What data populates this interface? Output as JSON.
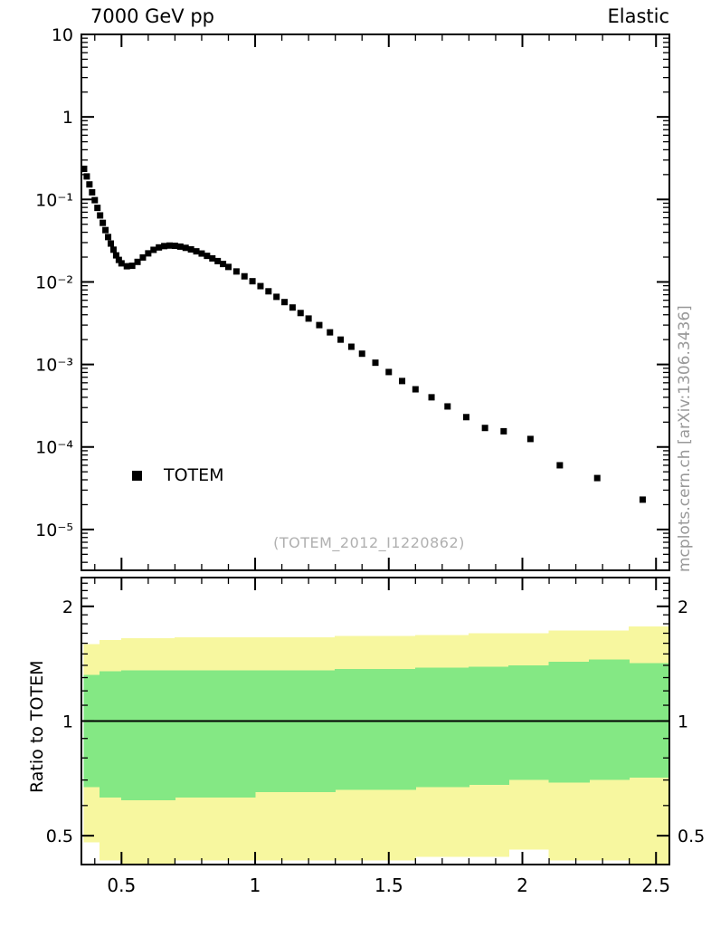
{
  "header": {
    "title_left": "7000 GeV pp",
    "title_right": "Elastic"
  },
  "legend": {
    "label": "TOTEM"
  },
  "watermark": "(TOTEM_2012_I1220862)",
  "side_note": "mcplots.cern.ch [arXiv:1306.3436]",
  "ratio_ylabel": "Ratio to TOTEM",
  "colors": {
    "marker": "#000000",
    "band_outer": "#f7f79f",
    "band_inner": "#84e884",
    "axis": "#000000",
    "watermark_text": "#b0b0b0",
    "side_note_text": "#999999"
  },
  "chart_data": [
    {
      "type": "scatter",
      "series_name": "TOTEM",
      "title": "7000 GeV pp — Elastic",
      "xlabel": "",
      "ylabel": "",
      "xlog": false,
      "ylog": true,
      "xlim": [
        0.35,
        2.55
      ],
      "ylim": [
        3.2e-06,
        10
      ],
      "marker": "filled-square",
      "marker_color": "#000000",
      "legend_position": "left-middle",
      "grid": false,
      "y_ticks": [
        {
          "label": "10",
          "value": 10
        },
        {
          "label": "1",
          "value": 1
        },
        {
          "label": "10⁻¹",
          "value": 0.1
        },
        {
          "label": "10⁻²",
          "value": 0.01
        },
        {
          "label": "10⁻³",
          "value": 0.001
        },
        {
          "label": "10⁻⁴",
          "value": 0.0001
        },
        {
          "label": "10⁻⁵",
          "value": 1e-05
        }
      ],
      "x_tick_labels": [
        {
          "label": "0.5",
          "value": 0.5
        },
        {
          "label": "1",
          "value": 1
        },
        {
          "label": "1.5",
          "value": 1.5
        },
        {
          "label": "2",
          "value": 2
        },
        {
          "label": "2.5",
          "value": 2.5
        }
      ],
      "x": [
        0.36,
        0.37,
        0.38,
        0.39,
        0.4,
        0.41,
        0.42,
        0.43,
        0.44,
        0.45,
        0.46,
        0.47,
        0.48,
        0.49,
        0.5,
        0.52,
        0.54,
        0.56,
        0.58,
        0.6,
        0.62,
        0.64,
        0.66,
        0.68,
        0.7,
        0.72,
        0.74,
        0.76,
        0.78,
        0.8,
        0.82,
        0.84,
        0.86,
        0.88,
        0.9,
        0.93,
        0.96,
        0.99,
        1.02,
        1.05,
        1.08,
        1.11,
        1.14,
        1.17,
        1.2,
        1.24,
        1.28,
        1.32,
        1.36,
        1.4,
        1.45,
        1.5,
        1.55,
        1.6,
        1.66,
        1.72,
        1.79,
        1.86,
        1.93,
        2.03,
        2.14,
        2.28,
        2.45
      ],
      "y": [
        0.235,
        0.19,
        0.152,
        0.122,
        0.098,
        0.079,
        0.064,
        0.052,
        0.0425,
        0.035,
        0.0292,
        0.0246,
        0.021,
        0.0185,
        0.0168,
        0.0155,
        0.0157,
        0.0175,
        0.0198,
        0.0222,
        0.0245,
        0.0262,
        0.0272,
        0.0276,
        0.0274,
        0.0268,
        0.0259,
        0.0248,
        0.0235,
        0.0221,
        0.0207,
        0.0193,
        0.0179,
        0.0165,
        0.0152,
        0.0134,
        0.0117,
        0.0102,
        0.0089,
        0.0077,
        0.0066,
        0.0057,
        0.0049,
        0.0042,
        0.0036,
        0.003,
        0.00245,
        0.002,
        0.00164,
        0.00135,
        0.00105,
        0.00081,
        0.00063,
        0.0005,
        0.0004,
        0.00031,
        0.00023,
        0.00017,
        0.000155,
        0.000125,
        6e-05,
        4.2e-05,
        2.3e-05
      ]
    },
    {
      "type": "band-ratio",
      "title": "Ratio to TOTEM",
      "ylog": true,
      "ylim": [
        0.42,
        2.38
      ],
      "reference_line": 1,
      "y_ticks": [
        {
          "label": "2",
          "value": 2
        },
        {
          "label": "1",
          "value": 1
        },
        {
          "label": "0.5",
          "value": 0.5
        }
      ],
      "bands": [
        {
          "name": "outer-uncertainty",
          "color": "#f7f79f",
          "bins": [
            {
              "x0": 0.36,
              "x1": 0.42,
              "lo": 0.48,
              "hi": 1.59
            },
            {
              "x0": 0.42,
              "x1": 0.5,
              "lo": 0.43,
              "hi": 1.63
            },
            {
              "x0": 0.5,
              "x1": 0.7,
              "lo": 0.42,
              "hi": 1.65
            },
            {
              "x0": 0.7,
              "x1": 1.0,
              "lo": 0.43,
              "hi": 1.66
            },
            {
              "x0": 1.0,
              "x1": 1.3,
              "lo": 0.43,
              "hi": 1.66
            },
            {
              "x0": 1.3,
              "x1": 1.6,
              "lo": 0.43,
              "hi": 1.67
            },
            {
              "x0": 1.6,
              "x1": 1.8,
              "lo": 0.44,
              "hi": 1.68
            },
            {
              "x0": 1.8,
              "x1": 1.95,
              "lo": 0.44,
              "hi": 1.7
            },
            {
              "x0": 1.95,
              "x1": 2.1,
              "lo": 0.46,
              "hi": 1.7
            },
            {
              "x0": 2.1,
              "x1": 2.25,
              "lo": 0.43,
              "hi": 1.73
            },
            {
              "x0": 2.25,
              "x1": 2.4,
              "lo": 0.43,
              "hi": 1.73
            },
            {
              "x0": 2.4,
              "x1": 2.55,
              "lo": 0.42,
              "hi": 1.77
            }
          ]
        },
        {
          "name": "inner-uncertainty",
          "color": "#84e884",
          "bins": [
            {
              "x0": 0.36,
              "x1": 0.42,
              "lo": 0.67,
              "hi": 1.32
            },
            {
              "x0": 0.42,
              "x1": 0.5,
              "lo": 0.63,
              "hi": 1.35
            },
            {
              "x0": 0.5,
              "x1": 0.7,
              "lo": 0.62,
              "hi": 1.36
            },
            {
              "x0": 0.7,
              "x1": 1.0,
              "lo": 0.63,
              "hi": 1.36
            },
            {
              "x0": 1.0,
              "x1": 1.3,
              "lo": 0.65,
              "hi": 1.36
            },
            {
              "x0": 1.3,
              "x1": 1.6,
              "lo": 0.66,
              "hi": 1.37
            },
            {
              "x0": 1.6,
              "x1": 1.8,
              "lo": 0.67,
              "hi": 1.38
            },
            {
              "x0": 1.8,
              "x1": 1.95,
              "lo": 0.68,
              "hi": 1.39
            },
            {
              "x0": 1.95,
              "x1": 2.1,
              "lo": 0.7,
              "hi": 1.4
            },
            {
              "x0": 2.1,
              "x1": 2.25,
              "lo": 0.69,
              "hi": 1.43
            },
            {
              "x0": 2.25,
              "x1": 2.4,
              "lo": 0.7,
              "hi": 1.45
            },
            {
              "x0": 2.4,
              "x1": 2.55,
              "lo": 0.71,
              "hi": 1.42
            }
          ]
        }
      ]
    }
  ]
}
